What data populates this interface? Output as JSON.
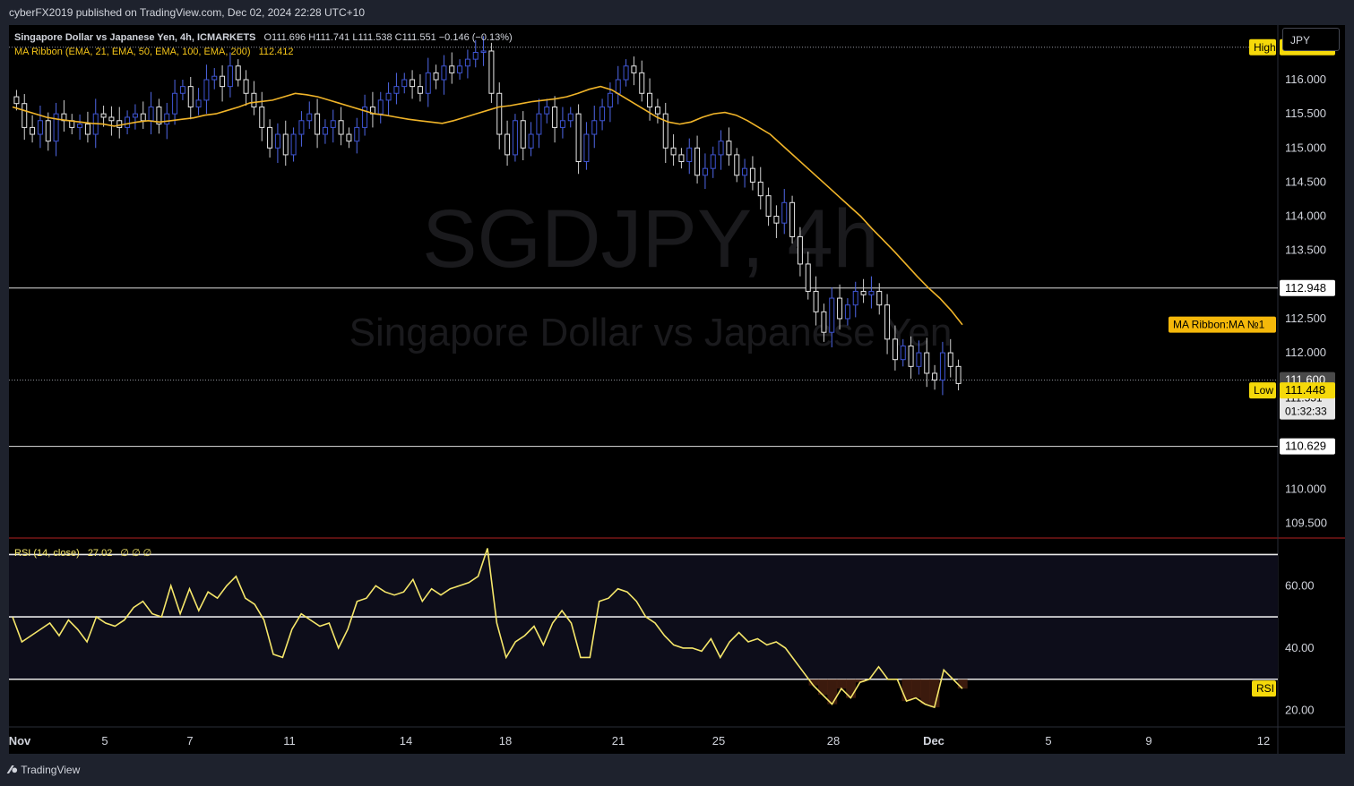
{
  "header": {
    "published": "cyberFX2019 published on TradingView.com, Dec 02, 2024 22:28 UTC+10"
  },
  "footer": {
    "brand": "TradingView"
  },
  "legend": {
    "symbol": "Singapore Dollar vs Japanese Yen, 4h, ICMARKETS",
    "ohlc": "O111.696  H111.741  L111.538  C111.551  −0.146 (−0.13%)",
    "ma": "MA Ribbon (EMA, 21, EMA, 50, EMA, 100, EMA, 200)",
    "ma_value": "112.412",
    "rsi": "RSI (14, close)",
    "rsi_value": "27.02",
    "rsi_extra": "∅  ∅  ∅"
  },
  "watermark": {
    "ticker": "SGDJPY, 4h",
    "name": "Singapore Dollar vs Japanese Yen"
  },
  "unit_button": "JPY",
  "chart_data": [
    {
      "type": "candlestick",
      "ylim": [
        109.3,
        116.8
      ],
      "y_ticks": [
        "116.000",
        "115.500",
        "115.000",
        "114.500",
        "114.000",
        "113.500",
        "112.500",
        "112.000",
        "110.000",
        "109.500"
      ],
      "x_ticks": [
        "Nov",
        "5",
        "7",
        "11",
        "14",
        "18",
        "21",
        "25",
        "28",
        "Dec",
        "5",
        "9",
        "12"
      ],
      "price_labels": [
        {
          "label": "High",
          "value": "116.475"
        },
        {
          "label": "",
          "value": "112.948"
        },
        {
          "label": "MA Ribbon:MA №1",
          "value": ""
        },
        {
          "label": "",
          "value": "111.600"
        },
        {
          "label": "",
          "value": "111.551",
          "countdown": "01:32:33"
        },
        {
          "label": "Low",
          "value": "111.448"
        },
        {
          "label": "",
          "value": "110.629"
        }
      ],
      "horizontal_levels": [
        116.475,
        112.948,
        111.6,
        110.629
      ],
      "close": [
        115.65,
        115.3,
        115.2,
        115.4,
        115.1,
        115.5,
        115.4,
        115.3,
        115.35,
        115.2,
        115.5,
        115.45,
        115.4,
        115.3,
        115.45,
        115.5,
        115.4,
        115.6,
        115.35,
        115.5,
        115.8,
        115.9,
        115.6,
        115.7,
        116.0,
        116.05,
        115.9,
        116.2,
        116.0,
        115.8,
        115.6,
        115.3,
        115.0,
        115.2,
        114.9,
        115.2,
        115.4,
        115.5,
        115.2,
        115.3,
        115.4,
        115.2,
        115.1,
        115.3,
        115.6,
        115.5,
        115.7,
        115.8,
        115.9,
        116.0,
        115.9,
        115.8,
        116.1,
        116.0,
        116.2,
        116.1,
        116.2,
        116.3,
        116.4,
        116.42,
        115.8,
        115.2,
        114.9,
        115.4,
        115.0,
        115.2,
        115.5,
        115.6,
        115.3,
        115.4,
        115.5,
        114.8,
        115.2,
        115.4,
        115.6,
        115.8,
        116.0,
        116.2,
        116.1,
        115.8,
        115.6,
        115.5,
        115.0,
        114.9,
        114.8,
        115.0,
        114.6,
        114.7,
        114.9,
        115.1,
        114.9,
        114.6,
        114.7,
        114.5,
        114.3,
        114.0,
        113.9,
        114.2,
        113.7,
        113.3,
        112.9,
        112.6,
        112.3,
        112.8,
        112.5,
        112.7,
        112.9,
        112.85,
        112.9,
        112.7,
        112.2,
        111.9,
        112.1,
        111.8,
        112.0,
        111.7,
        111.6,
        112.0,
        111.8,
        111.55
      ],
      "series": [
        {
          "name": "MA Ribbon:MA №1",
          "values": [
            115.6,
            115.55,
            115.5,
            115.45,
            115.42,
            115.4,
            115.38,
            115.36,
            115.35,
            115.32,
            115.35,
            115.38,
            115.4,
            115.38,
            115.4,
            115.42,
            115.44,
            115.48,
            115.5,
            115.55,
            115.6,
            115.66,
            115.68,
            115.7,
            115.75,
            115.8,
            115.78,
            115.75,
            115.7,
            115.65,
            115.6,
            115.55,
            115.5,
            115.48,
            115.45,
            115.42,
            115.4,
            115.38,
            115.36,
            115.4,
            115.45,
            115.5,
            115.55,
            115.6,
            115.62,
            115.65,
            115.68,
            115.7,
            115.72,
            115.75,
            115.8,
            115.86,
            115.9,
            115.85,
            115.75,
            115.65,
            115.55,
            115.45,
            115.38,
            115.35,
            115.38,
            115.45,
            115.5,
            115.52,
            115.48,
            115.4,
            115.3,
            115.2,
            115.05,
            114.9,
            114.75,
            114.6,
            114.45,
            114.3,
            114.15,
            114.0,
            113.82,
            113.65,
            113.48,
            113.3,
            113.12,
            112.95,
            112.8,
            112.62,
            112.41
          ]
        }
      ]
    },
    {
      "type": "line",
      "title": "RSI (14, close)",
      "ylim": [
        15,
        75
      ],
      "y_ticks": [
        "60.00",
        "40.00",
        "20.00"
      ],
      "levels": [
        70,
        50,
        30
      ],
      "badge": "RSI",
      "values": [
        50,
        42,
        44,
        46,
        48,
        44,
        49,
        46,
        42,
        50,
        48,
        47,
        49,
        53,
        55,
        51,
        50,
        60,
        51,
        59,
        52,
        58,
        56,
        60,
        63,
        56,
        54,
        49,
        38,
        37,
        46,
        51,
        49,
        47,
        48,
        40,
        46,
        55,
        56,
        60,
        58,
        57,
        58,
        62,
        55,
        59,
        57,
        59,
        60,
        61,
        63,
        72,
        48,
        37,
        42,
        44,
        47,
        41,
        48,
        52,
        48,
        37,
        37,
        55,
        56,
        59,
        58,
        55,
        50,
        48,
        44,
        41,
        40,
        40,
        39,
        43,
        37,
        42,
        45,
        42,
        43,
        41,
        42,
        40,
        36,
        32,
        28,
        25,
        22,
        27,
        24,
        29,
        30,
        34,
        30,
        30,
        23,
        24,
        22,
        21,
        33,
        30,
        27
      ]
    }
  ]
}
